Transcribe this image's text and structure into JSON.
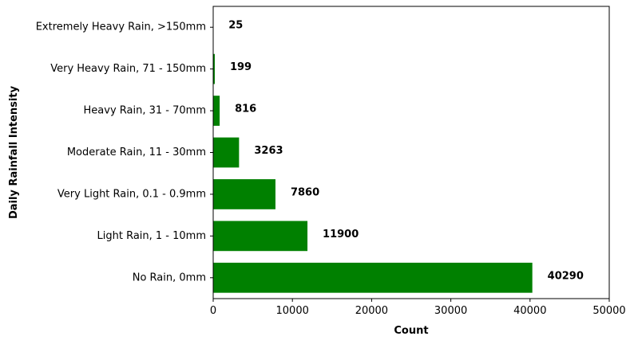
{
  "chart_data": {
    "type": "bar",
    "orientation": "horizontal",
    "categories": [
      "No Rain, 0mm",
      "Light Rain, 1 - 10mm",
      "Very Light Rain, 0.1 - 0.9mm",
      "Moderate Rain, 11 - 30mm",
      "Heavy Rain, 31 - 70mm",
      "Very Heavy Rain, 71 - 150mm",
      "Extremely Heavy Rain, >150mm"
    ],
    "values": [
      40290,
      11900,
      7860,
      3263,
      816,
      199,
      25
    ],
    "data_labels": [
      "40290",
      "11900",
      "7860",
      "3263",
      "816",
      "199",
      "25"
    ],
    "xlabel": "Count",
    "ylabel": "Daily Rainfall Intensity",
    "xlim": [
      0,
      50000
    ],
    "xticks": [
      0,
      10000,
      20000,
      30000,
      40000,
      50000
    ],
    "xtick_labels": [
      "0",
      "10000",
      "20000",
      "30000",
      "40000",
      "50000"
    ],
    "bar_color": "#008000",
    "grid": false,
    "legend": "none"
  }
}
